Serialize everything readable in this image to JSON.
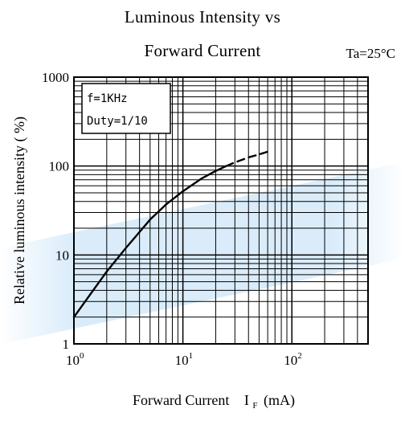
{
  "chart_data": {
    "type": "line",
    "title_line1": "Luminous Intensity vs",
    "title_line2": "Forward Current",
    "condition": "Ta=25°C",
    "xlabel": "Forward Current",
    "xlabel_symbol": "I",
    "xlabel_sub": "F",
    "xlabel_unit": "(mA)",
    "ylabel": "Relative luminous intensity ( %)",
    "x_scale": "log",
    "y_scale": "log",
    "xlim": [
      1,
      500
    ],
    "ylim": [
      1,
      1000
    ],
    "x_tick_labels": [
      {
        "value": 1,
        "base": "10",
        "exp": "0"
      },
      {
        "value": 10,
        "base": "10",
        "exp": "1"
      },
      {
        "value": 100,
        "base": "10",
        "exp": "2"
      }
    ],
    "y_tick_labels": [
      {
        "value": 1,
        "label": "1"
      },
      {
        "value": 10,
        "label": "10"
      },
      {
        "value": 100,
        "label": "100"
      },
      {
        "value": 1000,
        "label": "1000"
      }
    ],
    "grid": true,
    "legend_lines": [
      "f=1KHz",
      "Duty=1/10"
    ],
    "legend_placement": "top-left",
    "series": [
      {
        "style": "solid",
        "x": [
          1.0,
          1.5,
          2.0,
          3.0,
          5.0,
          7.0,
          10.0,
          15.0,
          20.0,
          25.0
        ],
        "y": [
          2.0,
          4.0,
          6.5,
          12.0,
          25.0,
          37.0,
          52.0,
          73.0,
          88.0,
          100.0
        ]
      },
      {
        "style": "dashed",
        "x": [
          25.0,
          30.0,
          40.0,
          50.0,
          60.0
        ],
        "y": [
          100.0,
          110.0,
          125.0,
          135.0,
          145.0
        ]
      }
    ]
  }
}
